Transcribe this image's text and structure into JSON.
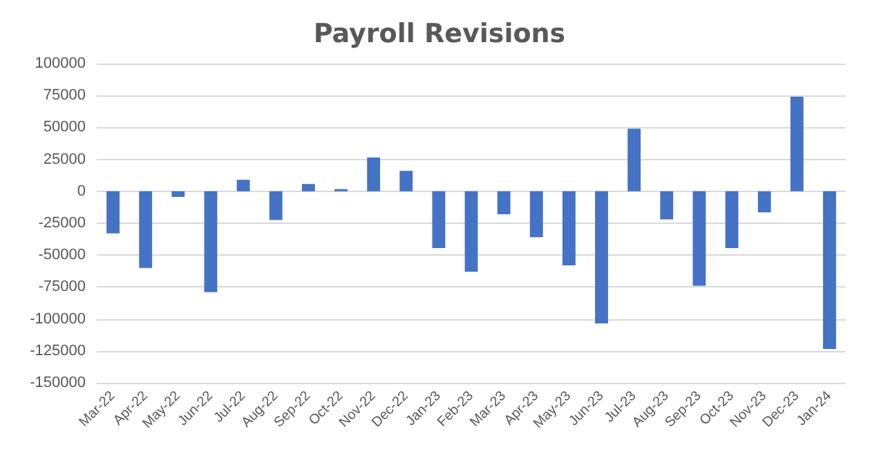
{
  "chart_data": {
    "type": "bar",
    "title": "Payroll Revisions",
    "categories": [
      "Mar-22",
      "Apr-22",
      "May-22",
      "Jun-22",
      "Jul-22",
      "Aug-22",
      "Sep-22",
      "Oct-22",
      "Nov-22",
      "Dec-22",
      "Jan-23",
      "Feb-23",
      "Mar-23",
      "Apr-23",
      "May-23",
      "Jun-23",
      "Jul-23",
      "Aug-23",
      "Sep-23",
      "Oct-23",
      "Nov-23",
      "Dec-23",
      "Jan-24"
    ],
    "values": [
      -33000,
      -60000,
      -4400,
      -79000,
      9000,
      -22500,
      5700,
      1700,
      26500,
      16000,
      -44500,
      -63000,
      -18000,
      -36000,
      -58000,
      -103500,
      49000,
      -22000,
      -74000,
      -44500,
      -16500,
      74000,
      -123500
    ],
    "color": "#4472c4",
    "ylim": [
      -150000,
      100000
    ],
    "yticks": [
      -150000,
      -125000,
      -100000,
      -75000,
      -50000,
      -25000,
      0,
      25000,
      50000,
      75000,
      100000
    ],
    "grid": "y"
  }
}
